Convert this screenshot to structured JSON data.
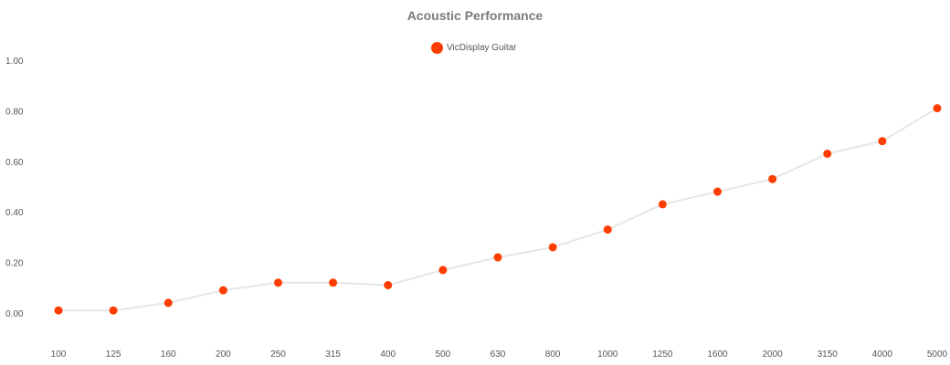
{
  "chart_data": {
    "type": "line",
    "title": "Acoustic Performance",
    "xlabel": "",
    "ylabel": "",
    "categories": [
      "100",
      "125",
      "160",
      "200",
      "250",
      "315",
      "400",
      "500",
      "630",
      "800",
      "1000",
      "1250",
      "1600",
      "2000",
      "3150",
      "4000",
      "5000"
    ],
    "series": [
      {
        "name": "VicDisplay Guitar",
        "values": [
          0.01,
          0.01,
          0.04,
          0.09,
          0.12,
          0.12,
          0.11,
          0.17,
          0.22,
          0.26,
          0.33,
          0.43,
          0.48,
          0.53,
          0.63,
          0.68,
          0.81
        ]
      }
    ],
    "ylim": [
      -0.1,
      1.1
    ],
    "yticks": [
      "0.00",
      "0.20",
      "0.40",
      "0.60",
      "0.80",
      "1.00"
    ],
    "grid": false,
    "legend_position": "top-center",
    "colors": {
      "marker": "#ff3d00",
      "line": "#e6e6e6",
      "title": "#7a7a7a"
    }
  }
}
